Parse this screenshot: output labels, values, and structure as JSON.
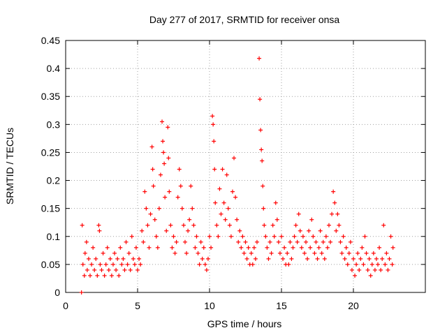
{
  "chart_data": {
    "type": "scatter",
    "title": "Day 277 of 2017, SRMTID for receiver onsa",
    "xlabel": "GPS time / hours",
    "ylabel": "SRMTID / TECUs",
    "xlim": [
      0,
      25
    ],
    "ylim": [
      0,
      0.45
    ],
    "grid": true,
    "marker": "+",
    "color": "#ff0000",
    "x_ticks": [
      {
        "value": 0,
        "label": "0"
      },
      {
        "value": 5,
        "label": "5"
      },
      {
        "value": 10,
        "label": "10"
      },
      {
        "value": 15,
        "label": "15"
      },
      {
        "value": 20,
        "label": "20"
      }
    ],
    "y_ticks": [
      {
        "value": 0,
        "label": "0"
      },
      {
        "value": 0.05,
        "label": "0.05"
      },
      {
        "value": 0.1,
        "label": "0.1"
      },
      {
        "value": 0.15,
        "label": "0.15"
      },
      {
        "value": 0.2,
        "label": "0.2"
      },
      {
        "value": 0.25,
        "label": "0.25"
      },
      {
        "value": 0.3,
        "label": "0.3"
      },
      {
        "value": 0.35,
        "label": "0.35"
      },
      {
        "value": 0.4,
        "label": "0.4"
      },
      {
        "value": 0.45,
        "label": "0.45"
      }
    ],
    "series": [
      {
        "name": "SRMTID",
        "points": [
          [
            1.1,
            0.0
          ],
          [
            1.15,
            0.12
          ],
          [
            1.2,
            0.05
          ],
          [
            1.3,
            0.03
          ],
          [
            1.35,
            0.07
          ],
          [
            1.45,
            0.09
          ],
          [
            1.5,
            0.04
          ],
          [
            1.6,
            0.06
          ],
          [
            1.7,
            0.03
          ],
          [
            1.8,
            0.05
          ],
          [
            1.9,
            0.08
          ],
          [
            2.0,
            0.04
          ],
          [
            2.1,
            0.06
          ],
          [
            2.2,
            0.03
          ],
          [
            2.3,
            0.12
          ],
          [
            2.35,
            0.11
          ],
          [
            2.4,
            0.05
          ],
          [
            2.5,
            0.04
          ],
          [
            2.6,
            0.07
          ],
          [
            2.7,
            0.03
          ],
          [
            2.8,
            0.05
          ],
          [
            2.9,
            0.08
          ],
          [
            3.0,
            0.04
          ],
          [
            3.1,
            0.06
          ],
          [
            3.2,
            0.03
          ],
          [
            3.3,
            0.05
          ],
          [
            3.4,
            0.07
          ],
          [
            3.5,
            0.04
          ],
          [
            3.6,
            0.06
          ],
          [
            3.7,
            0.03
          ],
          [
            3.8,
            0.08
          ],
          [
            3.9,
            0.05
          ],
          [
            4.0,
            0.06
          ],
          [
            4.1,
            0.04
          ],
          [
            4.2,
            0.09
          ],
          [
            4.3,
            0.05
          ],
          [
            4.4,
            0.07
          ],
          [
            4.5,
            0.04
          ],
          [
            4.6,
            0.1
          ],
          [
            4.7,
            0.06
          ],
          [
            4.8,
            0.05
          ],
          [
            4.9,
            0.08
          ],
          [
            5.0,
            0.04
          ],
          [
            5.1,
            0.06
          ],
          [
            5.2,
            0.05
          ],
          [
            5.3,
            0.11
          ],
          [
            5.4,
            0.09
          ],
          [
            5.5,
            0.18
          ],
          [
            5.6,
            0.15
          ],
          [
            5.7,
            0.12
          ],
          [
            5.8,
            0.08
          ],
          [
            5.9,
            0.14
          ],
          [
            6.0,
            0.26
          ],
          [
            6.05,
            0.22
          ],
          [
            6.1,
            0.19
          ],
          [
            6.2,
            0.13
          ],
          [
            6.3,
            0.1
          ],
          [
            6.4,
            0.08
          ],
          [
            6.5,
            0.15
          ],
          [
            6.6,
            0.21
          ],
          [
            6.7,
            0.305
          ],
          [
            6.75,
            0.27
          ],
          [
            6.8,
            0.25
          ],
          [
            6.85,
            0.23
          ],
          [
            6.9,
            0.17
          ],
          [
            7.0,
            0.11
          ],
          [
            7.1,
            0.295
          ],
          [
            7.15,
            0.24
          ],
          [
            7.2,
            0.18
          ],
          [
            7.3,
            0.12
          ],
          [
            7.4,
            0.08
          ],
          [
            7.5,
            0.1
          ],
          [
            7.6,
            0.07
          ],
          [
            7.7,
            0.09
          ],
          [
            7.8,
            0.17
          ],
          [
            7.9,
            0.22
          ],
          [
            8.0,
            0.19
          ],
          [
            8.1,
            0.15
          ],
          [
            8.2,
            0.12
          ],
          [
            8.3,
            0.09
          ],
          [
            8.4,
            0.07
          ],
          [
            8.5,
            0.11
          ],
          [
            8.6,
            0.13
          ],
          [
            8.7,
            0.19
          ],
          [
            8.8,
            0.15
          ],
          [
            8.9,
            0.12
          ],
          [
            9.0,
            0.08
          ],
          [
            9.1,
            0.1
          ],
          [
            9.2,
            0.07
          ],
          [
            9.3,
            0.05
          ],
          [
            9.4,
            0.09
          ],
          [
            9.5,
            0.06
          ],
          [
            9.6,
            0.08
          ],
          [
            9.7,
            0.05
          ],
          [
            9.8,
            0.04
          ],
          [
            9.9,
            0.06
          ],
          [
            10.0,
            0.1
          ],
          [
            10.1,
            0.08
          ],
          [
            10.2,
            0.315
          ],
          [
            10.25,
            0.3
          ],
          [
            10.3,
            0.27
          ],
          [
            10.35,
            0.22
          ],
          [
            10.4,
            0.16
          ],
          [
            10.5,
            0.12
          ],
          [
            10.6,
            0.1
          ],
          [
            10.7,
            0.185
          ],
          [
            10.8,
            0.14
          ],
          [
            10.9,
            0.22
          ],
          [
            11.0,
            0.16
          ],
          [
            11.1,
            0.13
          ],
          [
            11.2,
            0.21
          ],
          [
            11.3,
            0.15
          ],
          [
            11.4,
            0.12
          ],
          [
            11.5,
            0.1
          ],
          [
            11.6,
            0.18
          ],
          [
            11.7,
            0.24
          ],
          [
            11.8,
            0.17
          ],
          [
            11.9,
            0.13
          ],
          [
            12.0,
            0.09
          ],
          [
            12.1,
            0.11
          ],
          [
            12.2,
            0.08
          ],
          [
            12.3,
            0.1
          ],
          [
            12.4,
            0.07
          ],
          [
            12.5,
            0.09
          ],
          [
            12.6,
            0.06
          ],
          [
            12.7,
            0.08
          ],
          [
            12.8,
            0.05
          ],
          [
            12.9,
            0.07
          ],
          [
            13.0,
            0.05
          ],
          [
            13.1,
            0.08
          ],
          [
            13.2,
            0.06
          ],
          [
            13.3,
            0.09
          ],
          [
            13.45,
            0.418
          ],
          [
            13.5,
            0.345
          ],
          [
            13.55,
            0.29
          ],
          [
            13.6,
            0.255
          ],
          [
            13.65,
            0.235
          ],
          [
            13.7,
            0.19
          ],
          [
            13.75,
            0.15
          ],
          [
            13.8,
            0.12
          ],
          [
            13.9,
            0.1
          ],
          [
            14.0,
            0.08
          ],
          [
            14.1,
            0.06
          ],
          [
            14.2,
            0.09
          ],
          [
            14.3,
            0.07
          ],
          [
            14.4,
            0.12
          ],
          [
            14.5,
            0.1
          ],
          [
            14.6,
            0.16
          ],
          [
            14.7,
            0.13
          ],
          [
            14.8,
            0.09
          ],
          [
            14.9,
            0.07
          ],
          [
            15.0,
            0.1
          ],
          [
            15.1,
            0.06
          ],
          [
            15.2,
            0.08
          ],
          [
            15.3,
            0.05
          ],
          [
            15.4,
            0.07
          ],
          [
            15.5,
            0.05
          ],
          [
            15.6,
            0.09
          ],
          [
            15.7,
            0.06
          ],
          [
            15.8,
            0.08
          ],
          [
            15.9,
            0.1
          ],
          [
            16.0,
            0.12
          ],
          [
            16.1,
            0.09
          ],
          [
            16.2,
            0.14
          ],
          [
            16.3,
            0.11
          ],
          [
            16.4,
            0.08
          ],
          [
            16.5,
            0.1
          ],
          [
            16.6,
            0.07
          ],
          [
            16.7,
            0.09
          ],
          [
            16.8,
            0.06
          ],
          [
            16.9,
            0.11
          ],
          [
            17.0,
            0.08
          ],
          [
            17.1,
            0.13
          ],
          [
            17.2,
            0.1
          ],
          [
            17.3,
            0.07
          ],
          [
            17.4,
            0.09
          ],
          [
            17.5,
            0.06
          ],
          [
            17.6,
            0.08
          ],
          [
            17.7,
            0.11
          ],
          [
            17.8,
            0.07
          ],
          [
            17.9,
            0.09
          ],
          [
            18.0,
            0.06
          ],
          [
            18.1,
            0.1
          ],
          [
            18.2,
            0.08
          ],
          [
            18.3,
            0.12
          ],
          [
            18.4,
            0.09
          ],
          [
            18.5,
            0.14
          ],
          [
            18.6,
            0.18
          ],
          [
            18.7,
            0.16
          ],
          [
            18.8,
            0.11
          ],
          [
            18.9,
            0.14
          ],
          [
            19.0,
            0.12
          ],
          [
            19.1,
            0.09
          ],
          [
            19.2,
            0.07
          ],
          [
            19.3,
            0.1
          ],
          [
            19.4,
            0.06
          ],
          [
            19.5,
            0.08
          ],
          [
            19.6,
            0.05
          ],
          [
            19.7,
            0.07
          ],
          [
            19.8,
            0.09
          ],
          [
            19.9,
            0.04
          ],
          [
            20.0,
            0.06
          ],
          [
            20.1,
            0.03
          ],
          [
            20.2,
            0.05
          ],
          [
            20.3,
            0.07
          ],
          [
            20.4,
            0.04
          ],
          [
            20.5,
            0.06
          ],
          [
            20.6,
            0.08
          ],
          [
            20.7,
            0.05
          ],
          [
            20.8,
            0.1
          ],
          [
            20.9,
            0.07
          ],
          [
            21.0,
            0.04
          ],
          [
            21.1,
            0.06
          ],
          [
            21.2,
            0.03
          ],
          [
            21.3,
            0.05
          ],
          [
            21.4,
            0.07
          ],
          [
            21.5,
            0.04
          ],
          [
            21.6,
            0.06
          ],
          [
            21.7,
            0.05
          ],
          [
            21.8,
            0.08
          ],
          [
            21.9,
            0.04
          ],
          [
            22.0,
            0.06
          ],
          [
            22.1,
            0.12
          ],
          [
            22.2,
            0.05
          ],
          [
            22.3,
            0.07
          ],
          [
            22.4,
            0.04
          ],
          [
            22.5,
            0.06
          ],
          [
            22.6,
            0.1
          ],
          [
            22.7,
            0.05
          ],
          [
            22.75,
            0.08
          ]
        ]
      }
    ]
  }
}
